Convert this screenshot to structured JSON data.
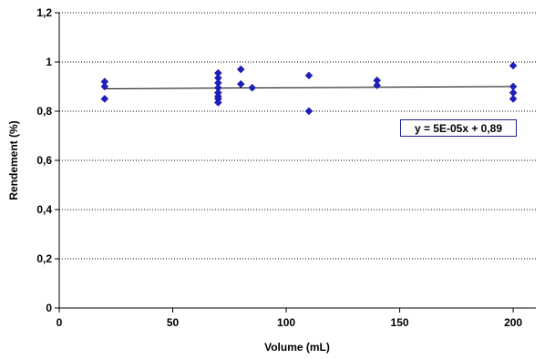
{
  "chart_data": {
    "type": "scatter",
    "xlabel": "Volume (mL)",
    "ylabel": "Rendement (%)",
    "xlim": [
      0,
      210
    ],
    "ylim": [
      0,
      1.2
    ],
    "x_ticks": [
      0,
      50,
      100,
      150,
      200
    ],
    "x_tick_labels": [
      "0",
      "50",
      "100",
      "150",
      "200"
    ],
    "y_ticks": [
      0,
      0.2,
      0.4,
      0.6,
      0.8,
      1.0,
      1.2
    ],
    "y_tick_labels": [
      "0",
      "0,2",
      "0,4",
      "0,6",
      "0,8",
      "1",
      "1,2"
    ],
    "grid": "horizontal dotted",
    "legend": "none",
    "marker_color": "#1f1fbf",
    "points": [
      {
        "x": 20,
        "y": 0.92
      },
      {
        "x": 20,
        "y": 0.9
      },
      {
        "x": 20,
        "y": 0.85
      },
      {
        "x": 70,
        "y": 0.955
      },
      {
        "x": 70,
        "y": 0.935
      },
      {
        "x": 70,
        "y": 0.915
      },
      {
        "x": 70,
        "y": 0.895
      },
      {
        "x": 70,
        "y": 0.875
      },
      {
        "x": 70,
        "y": 0.86
      },
      {
        "x": 70,
        "y": 0.85
      },
      {
        "x": 70,
        "y": 0.835
      },
      {
        "x": 80,
        "y": 0.97
      },
      {
        "x": 80,
        "y": 0.91
      },
      {
        "x": 85,
        "y": 0.895
      },
      {
        "x": 110,
        "y": 0.945
      },
      {
        "x": 110,
        "y": 0.8
      },
      {
        "x": 140,
        "y": 0.925
      },
      {
        "x": 140,
        "y": 0.905
      },
      {
        "x": 200,
        "y": 0.985
      },
      {
        "x": 200,
        "y": 0.9
      },
      {
        "x": 200,
        "y": 0.875
      },
      {
        "x": 200,
        "y": 0.85
      }
    ],
    "trendline": {
      "slope": 5e-05,
      "intercept": 0.89,
      "x_range": [
        20,
        200
      ],
      "color": "#000000"
    },
    "annotation": "y = 5E-05x + 0,89"
  }
}
